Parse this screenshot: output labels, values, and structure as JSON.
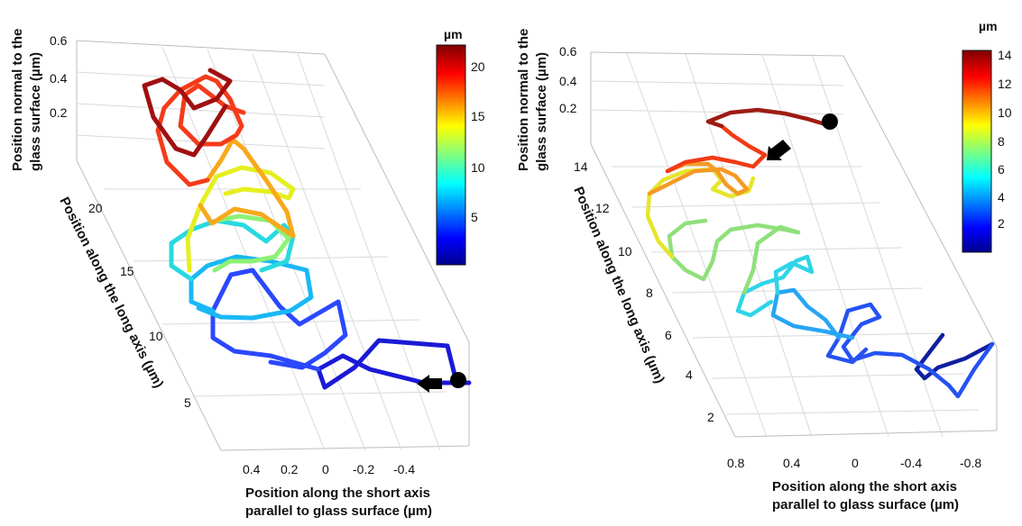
{
  "chart_data": [
    {
      "type": "line",
      "subtype": "3d-trajectory",
      "colorbar": {
        "unit": "µm",
        "ticks": [
          "20",
          "15",
          "10",
          "5"
        ],
        "range": [
          0,
          22
        ],
        "colormap": "jet"
      },
      "xlabel": [
        "Position along the short axis",
        "parallel to glass surface (µm)"
      ],
      "ylabel": [
        "Position along the long axis (µm)"
      ],
      "zlabel": [
        "Position normal to the",
        "glass surface (µm)"
      ],
      "xticks": [
        "0.4",
        "0.2",
        "0",
        "-0.2",
        "-0.4"
      ],
      "yticks": [
        "20",
        "15",
        "10",
        "5"
      ],
      "zticks": [
        "0.6",
        "0.4",
        "0.2"
      ],
      "markers": [
        "start-circle",
        "direction-arrow"
      ],
      "trajectory": {
        "description_axes": "x = short-axis position (µm), y = long-axis position (µm), z = normal position (µm)",
        "x": [
          -0.55,
          -0.45,
          -0.4,
          -0.15,
          0.0,
          0.05,
          0.1,
          0.05,
          0.15,
          0.1,
          -0.05,
          0.15,
          0.2,
          0.25,
          0.1,
          0.05,
          0.2,
          0.15,
          0.1,
          0.05,
          0.25,
          0.3,
          0.15,
          -0.05,
          0.0,
          -0.1,
          0.1,
          0.2,
          0.3,
          0.35,
          0.2
        ],
        "y": [
          3.5,
          3.0,
          5.5,
          6.0,
          5.0,
          6.5,
          8.0,
          10.0,
          11.0,
          10.5,
          9.0,
          11.5,
          13.0,
          13.5,
          12.0,
          14.0,
          15.5,
          15.0,
          13.5,
          16.0,
          17.5,
          17.0,
          15.0,
          17.0,
          19.0,
          18.5,
          20.0,
          21.5,
          22.0,
          21.0,
          20.0
        ],
        "z": [
          0.1,
          0.2,
          0.3,
          0.1,
          0.4,
          0.2,
          0.1,
          0.3,
          0.2,
          0.4,
          0.3,
          0.2,
          0.1,
          0.3,
          0.4,
          0.2,
          0.3,
          0.5,
          0.4,
          0.2,
          0.3,
          0.5,
          0.4,
          0.3,
          0.2,
          0.4,
          0.5,
          0.3,
          0.2,
          0.4,
          0.3
        ]
      }
    },
    {
      "type": "line",
      "subtype": "3d-trajectory",
      "colorbar": {
        "unit": "µm",
        "ticks": [
          "14",
          "12",
          "10",
          "8",
          "6",
          "4",
          "2"
        ],
        "range": [
          0,
          14
        ],
        "colormap": "jet"
      },
      "xlabel": [
        "Position along the short axis",
        "parallel to glass surface (µm)"
      ],
      "ylabel": [
        "Position along the long axis (µm)"
      ],
      "zlabel": [
        "Position normal to the",
        "glass surface (µm)"
      ],
      "xticks": [
        "0.8",
        "0.4",
        "0",
        "-0.4",
        "-0.8"
      ],
      "yticks": [
        "14",
        "12",
        "10",
        "8",
        "6",
        "4",
        "2"
      ],
      "zticks": [
        "0.6",
        "0.4",
        "0.2"
      ],
      "markers": [
        "start-circle",
        "direction-arrow"
      ],
      "trajectory": {
        "description_axes": "x = short-axis position (µm), y = long-axis position (µm), z = normal position (µm)",
        "x": [
          -0.9,
          -0.85,
          -0.7,
          -0.8,
          -0.6,
          -0.5,
          -0.3,
          -0.1,
          -0.2,
          0.0,
          0.1,
          -0.05,
          0.1,
          0.3,
          0.2,
          0.35,
          0.5,
          0.6,
          0.55,
          0.4,
          0.5,
          0.35,
          0.2,
          0.1,
          0.15,
          0.0,
          -0.1,
          -0.3,
          -0.5
        ],
        "y": [
          2.0,
          1.5,
          2.5,
          3.0,
          2.8,
          3.5,
          3.2,
          4.5,
          5.0,
          5.5,
          6.0,
          7.0,
          8.5,
          8.0,
          9.5,
          9.0,
          10.0,
          11.5,
          12.5,
          12.0,
          13.0,
          12.5,
          11.5,
          12.5,
          13.5,
          13.8,
          14.0,
          14.2,
          14.0
        ],
        "z": [
          0.1,
          0.2,
          0.1,
          0.3,
          0.2,
          0.1,
          0.3,
          0.2,
          0.1,
          0.2,
          0.3,
          0.2,
          0.3,
          0.2,
          0.1,
          0.3,
          0.2,
          0.3,
          0.4,
          0.3,
          0.2,
          0.3,
          0.4,
          0.3,
          0.4,
          0.5,
          0.4,
          0.5,
          0.4
        ]
      }
    }
  ]
}
